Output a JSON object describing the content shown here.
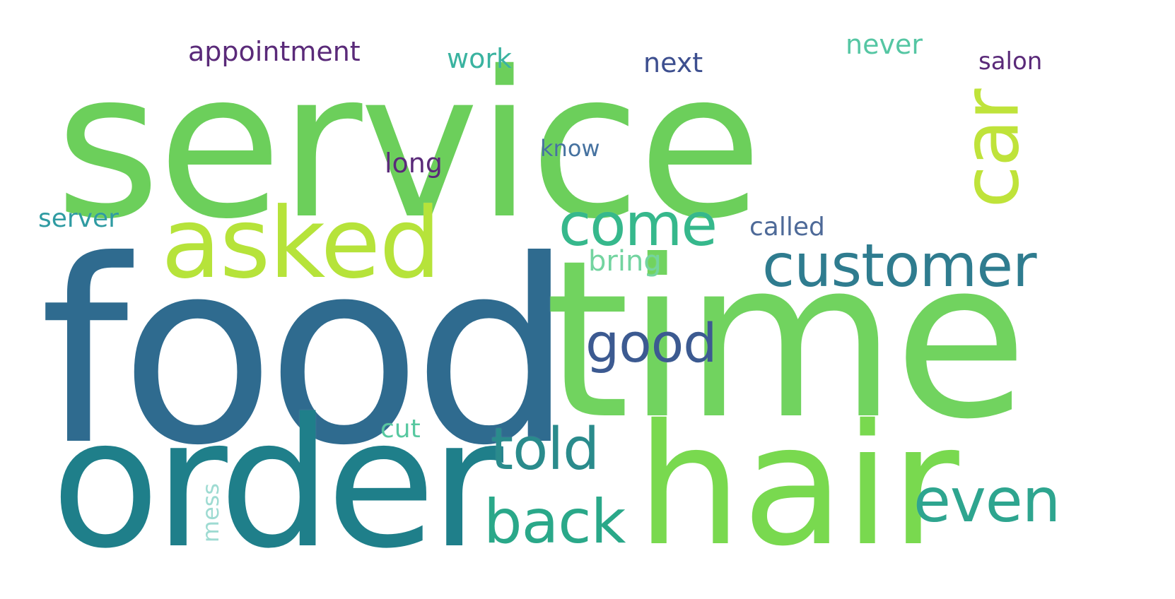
{
  "wordcloud": {
    "background": "#ffffff",
    "words": [
      {
        "text": "service",
        "color": "#6ccf5b"
      },
      {
        "text": "food",
        "color": "#2f6b8f"
      },
      {
        "text": "time",
        "color": "#71d35f"
      },
      {
        "text": "order",
        "color": "#1f7f8a"
      },
      {
        "text": "hair",
        "color": "#79d94f"
      },
      {
        "text": "asked",
        "color": "#b6e33a"
      },
      {
        "text": "car",
        "color": "#bfe33a"
      },
      {
        "text": "come",
        "color": "#36b88c"
      },
      {
        "text": "customer",
        "color": "#2f7c8f"
      },
      {
        "text": "good",
        "color": "#3c5a91"
      },
      {
        "text": "told",
        "color": "#2a8b8c"
      },
      {
        "text": "back",
        "color": "#2aa889"
      },
      {
        "text": "even",
        "color": "#2ea58f"
      },
      {
        "text": "appointment",
        "color": "#5a2a79"
      },
      {
        "text": "work",
        "color": "#3ab3a0"
      },
      {
        "text": "next",
        "color": "#3d4f8f"
      },
      {
        "text": "never",
        "color": "#55c6a3"
      },
      {
        "text": "salon",
        "color": "#5a2a79"
      },
      {
        "text": "long",
        "color": "#5a2a79"
      },
      {
        "text": "know",
        "color": "#4672a0"
      },
      {
        "text": "called",
        "color": "#4e6a98"
      },
      {
        "text": "server",
        "color": "#2f9ba2"
      },
      {
        "text": "bring",
        "color": "#73d4a0"
      },
      {
        "text": "cut",
        "color": "#58c8a0"
      },
      {
        "text": "mess",
        "color": "#9edbd2"
      }
    ]
  }
}
